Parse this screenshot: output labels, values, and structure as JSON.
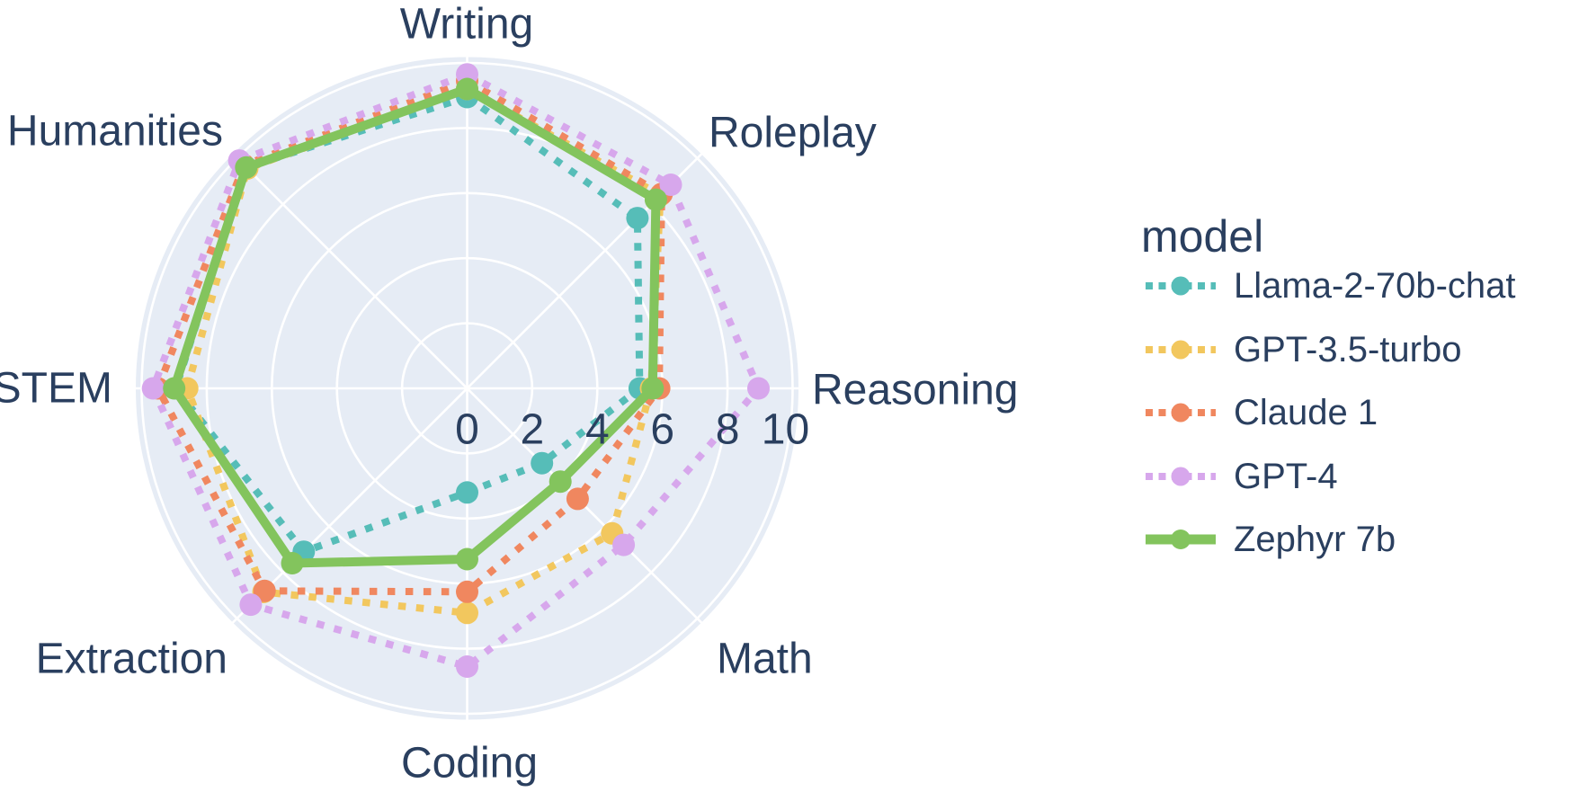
{
  "chart_data": {
    "type": "radar",
    "title": "",
    "legend": {
      "title": "model",
      "position": "right"
    },
    "categories": [
      "Writing",
      "Roleplay",
      "Reasoning",
      "Math",
      "Coding",
      "Extraction",
      "STEM",
      "Humanities"
    ],
    "angular_order": "clockwise-from-top",
    "radial_axis": {
      "min": 0,
      "max": 10,
      "ticks": [
        0,
        2,
        4,
        6,
        8,
        10
      ]
    },
    "grid": true,
    "colors": {
      "polar_background": "#e6ecf5",
      "gridline": "#ffffff",
      "text": "#2a3f5f",
      "page_background": "#ffffff"
    },
    "series": [
      {
        "name": "Llama-2-70b-chat",
        "color": "#56bdb8",
        "line_style": "dashed",
        "values": [
          8.95,
          7.4,
          5.3,
          3.25,
          3.2,
          7.1,
          8.95,
          9.6
        ]
      },
      {
        "name": "GPT-3.5-turbo",
        "color": "#f2c75e",
        "line_style": "dashed",
        "values": [
          9.2,
          8.4,
          5.65,
          6.3,
          6.9,
          8.85,
          8.6,
          9.55
        ]
      },
      {
        "name": "Claude 1",
        "color": "#f0875f",
        "line_style": "dashed",
        "values": [
          9.45,
          8.45,
          5.9,
          4.8,
          6.25,
          8.8,
          9.5,
          9.7
        ]
      },
      {
        "name": "GPT-4",
        "color": "#d7a7ec",
        "line_style": "dashed",
        "values": [
          9.65,
          8.85,
          8.95,
          6.8,
          8.55,
          9.4,
          9.65,
          9.9
        ]
      },
      {
        "name": "Zephyr 7b",
        "color": "#83c45d",
        "line_style": "solid",
        "values": [
          9.2,
          8.2,
          5.7,
          4.05,
          5.25,
          7.6,
          9.0,
          9.6
        ]
      }
    ]
  }
}
